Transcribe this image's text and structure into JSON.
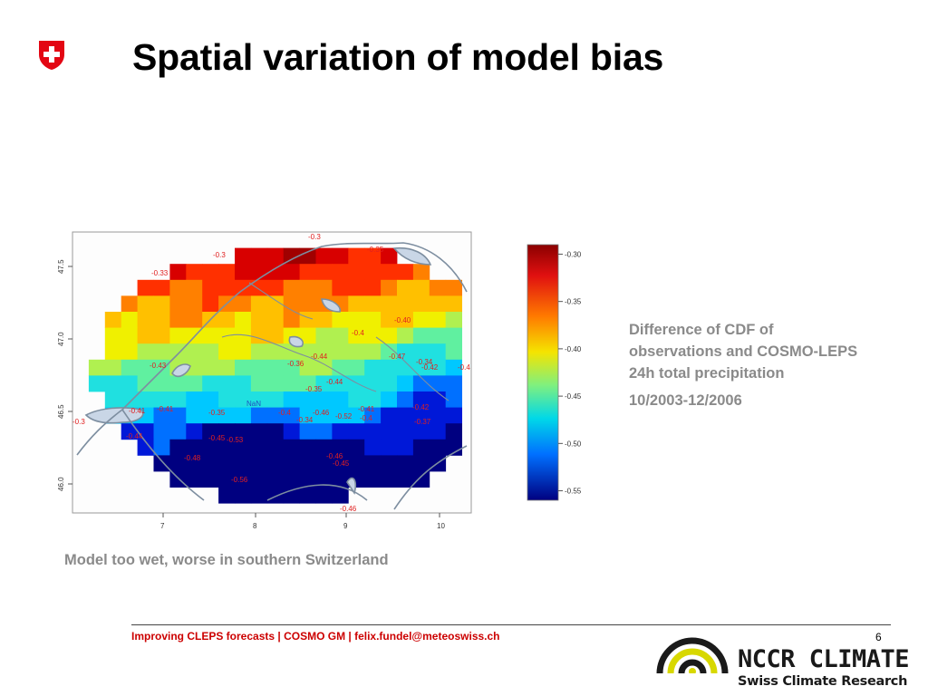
{
  "slide": {
    "title": "Spatial variation of model bias",
    "description_lines": [
      "Difference of CDF of",
      "observations and COSMO-LEPS",
      "24h total precipitation"
    ],
    "period": "10/2003-12/2006",
    "summary": "Model too wet, worse in southern Switzerland",
    "page_number": "6"
  },
  "footer": {
    "text": "Improving CLEPS forecasts | COSMO GM | felix.fundel@meteoswiss.ch"
  },
  "logos": {
    "nccr_name": "NCCR CLIMATE",
    "nccr_subtitle": "Swiss Climate Research",
    "nccr_accent_color": "#d8d800",
    "swiss_red": "#e30613"
  },
  "map": {
    "x_ticks": [
      "7",
      "8",
      "9",
      "10"
    ],
    "y_ticks": [
      "47.5",
      "47.0",
      "46.5",
      "46.0"
    ],
    "colorbar_ticks": [
      "-0.30",
      "-0.35",
      "-0.40",
      "-0.45",
      "-0.50",
      "-0.55"
    ],
    "colorbar_range": [
      -0.56,
      -0.29
    ],
    "station_labels": [
      "-0.3",
      "-0.35",
      "-0.33",
      "-0.3",
      "-0.40",
      "-0.4",
      "-0.44",
      "-0.47",
      "-0.34",
      "-0.42",
      "-0.4",
      "-0.43",
      "-0.36",
      "-0.44",
      "-0.35",
      "NaN",
      "-0.41",
      "-0.41",
      "-0.35",
      "-0.4",
      "-0.46",
      "-0.34",
      "-0.52",
      "-0.41",
      "-0.4",
      "-0.42",
      "-0.37",
      "-0.3",
      "-0.44",
      "-0.45",
      "-0.53",
      "-0.56",
      "-0.48",
      "-0.46",
      "-0.45",
      "-0.46"
    ]
  }
}
